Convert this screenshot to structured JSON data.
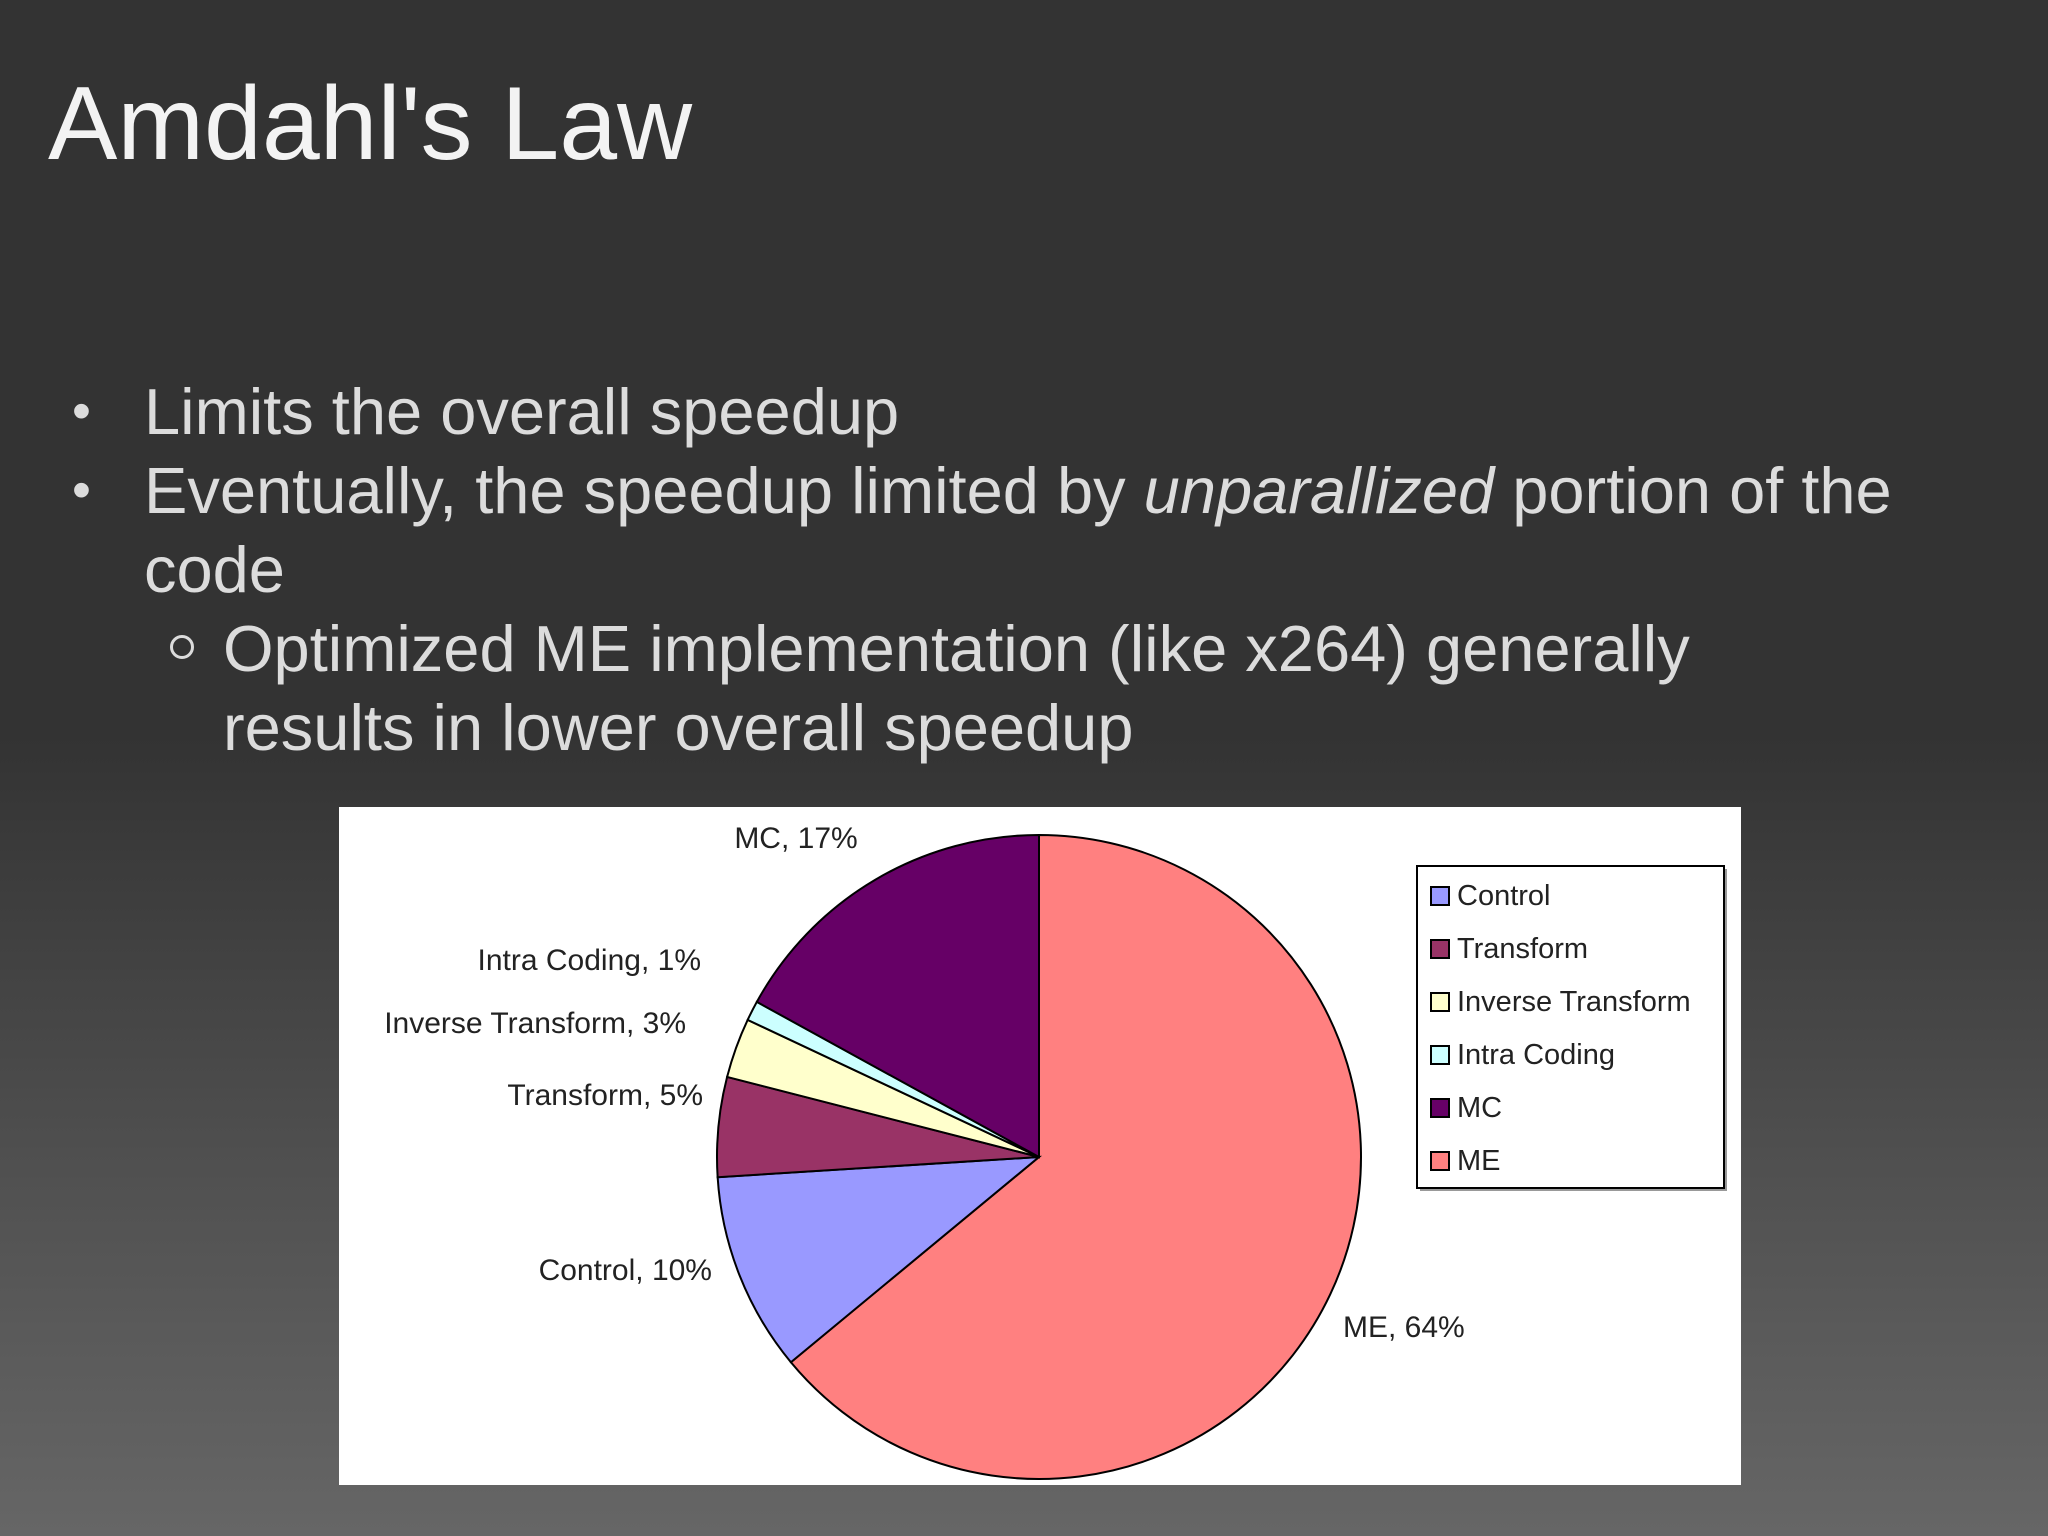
{
  "slide": {
    "title": "Amdahl's Law",
    "bullets": [
      {
        "text": "Limits the overall speedup"
      },
      {
        "text_before": "Eventually, the speedup limited by ",
        "emphasis": "unparallized",
        "text_after": " portion of the code"
      }
    ],
    "sub_bullets": [
      {
        "text": "Optimized ME implementation (like x264) generally results in lower overall speedup"
      }
    ]
  },
  "chart_data": {
    "type": "pie",
    "title": "",
    "slices": [
      {
        "name": "ME",
        "value": 64,
        "label": "ME, 64%",
        "color": "#ff8080"
      },
      {
        "name": "Control",
        "value": 10,
        "label": "Control, 10%",
        "color": "#9999ff"
      },
      {
        "name": "Transform",
        "value": 5,
        "label": "Transform, 5%",
        "color": "#993366"
      },
      {
        "name": "Inverse Transform",
        "value": 3,
        "label": "Inverse Transform, 3%",
        "color": "#ffffcc"
      },
      {
        "name": "Intra Coding",
        "value": 1,
        "label": "Intra Coding, 1%",
        "color": "#ccffff"
      },
      {
        "name": "MC",
        "value": 17,
        "label": "MC, 17%",
        "color": "#660066"
      }
    ],
    "legend": {
      "position": "right",
      "entries": [
        "Control",
        "Transform",
        "Inverse Transform",
        "Intra Coding",
        "MC",
        "ME"
      ]
    }
  }
}
